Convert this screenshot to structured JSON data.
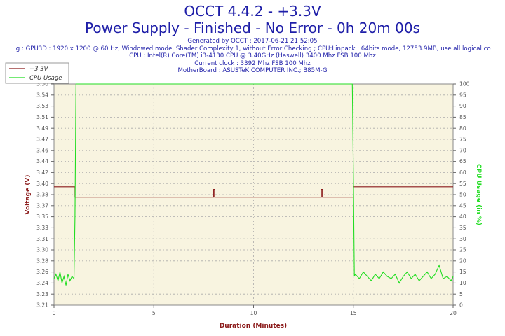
{
  "header": {
    "title": "OCCT 4.4.2 - +3.3V",
    "subtitle": "Power Supply - Finished - No Error - 0h 20m 00s",
    "info_lines": [
      "Generated by OCCT : 2017-06-21 21:52:05",
      "ig : GPU3D : 1920 x 1200 @ 60 Hz, Windowed mode, Shader Complexity 1, without Error Checking ; CPU:Linpack : 64bits mode, 12753.9MB, use all logical co",
      "CPU : Intel(R) Core(TM) i3-4130 CPU @ 3.40GHz (Haswell) 3400 Mhz FSB 100 Mhz",
      "Current clock : 3392 Mhz FSB 100 Mhz",
      "MotherBoard : ASUSTeK COMPUTER INC.; B85M-G"
    ]
  },
  "colors": {
    "voltage": "#8b1a1a",
    "cpu": "#22dd22",
    "plot_bg": "#f8f4e0",
    "grid": "#aaaaaa",
    "axis_title": "#8b1a1a",
    "x_title": "#8b1a1a"
  },
  "chart_data": {
    "type": "line",
    "xlabel": "Duration (Minutes)",
    "ylabel_left": "Voltage (V)",
    "ylabel_right": "CPU Usage (in %)",
    "xlim": [
      0,
      20
    ],
    "ylim_left": [
      3.21,
      3.55
    ],
    "ylim_right": [
      0,
      100
    ],
    "x_ticks": [
      "0",
      "5",
      "10",
      "15",
      "20"
    ],
    "y_left_ticks": [
      "3.21",
      "3.23",
      "3.24",
      "3.26",
      "3.28",
      "3.30",
      "3.31",
      "3.33",
      "3.35",
      "3.37",
      "3.38",
      "3.40",
      "3.42",
      "3.44",
      "3.46",
      "3.47",
      "3.49",
      "3.51",
      "3.53",
      "3.54",
      "3.56"
    ],
    "y_right_ticks": [
      "0",
      "5",
      "10",
      "15",
      "20",
      "25",
      "30",
      "35",
      "40",
      "45",
      "50",
      "55",
      "60",
      "65",
      "70",
      "75",
      "80",
      "85",
      "90",
      "95",
      "100"
    ],
    "grid": true,
    "legend_position": "top-left",
    "series": [
      {
        "name": "+3.3V",
        "axis": "left",
        "x": [
          0,
          1.05,
          1.05,
          8.0,
          8.0,
          8.05,
          8.05,
          13.4,
          13.4,
          13.45,
          13.45,
          15.0,
          15.0,
          20.0
        ],
        "values": [
          3.392,
          3.392,
          3.376,
          3.376,
          3.388,
          3.388,
          3.376,
          3.376,
          3.388,
          3.388,
          3.376,
          3.376,
          3.392,
          3.392
        ]
      },
      {
        "name": "CPU Usage",
        "axis": "right",
        "x": [
          0,
          0.1,
          0.2,
          0.3,
          0.4,
          0.5,
          0.6,
          0.7,
          0.8,
          0.9,
          1.0,
          1.05,
          1.1,
          1.2,
          14.95,
          15.0,
          15.05,
          15.1,
          15.3,
          15.5,
          15.7,
          15.9,
          16.1,
          16.3,
          16.5,
          16.7,
          16.9,
          17.1,
          17.3,
          17.5,
          17.7,
          17.9,
          18.1,
          18.3,
          18.5,
          18.7,
          18.9,
          19.1,
          19.3,
          19.5,
          19.7,
          19.9,
          20.0
        ],
        "values": [
          12,
          14,
          11,
          15,
          10,
          13,
          9,
          14,
          11,
          13,
          12,
          40,
          100,
          100,
          100,
          60,
          13,
          14,
          12,
          15,
          13,
          11,
          14,
          12,
          15,
          13,
          12,
          14,
          10,
          13,
          15,
          12,
          14,
          11,
          13,
          15,
          12,
          14,
          18,
          12,
          13,
          11,
          13
        ]
      }
    ]
  }
}
